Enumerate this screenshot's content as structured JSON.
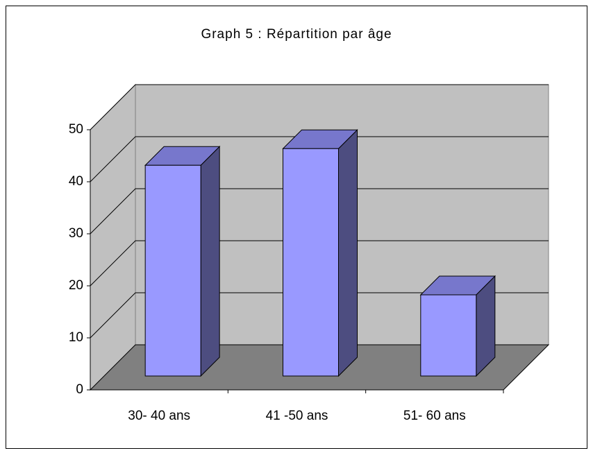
{
  "chart_data": {
    "type": "bar3d",
    "title": "Graph 5 : Répartition par âge",
    "categories": [
      "30- 40 ans",
      "41 -50 ans",
      "51- 60 ans"
    ],
    "values": [
      40.5,
      43.7,
      15.6
    ],
    "color": "#9999ff",
    "ylim": [
      0,
      50
    ],
    "yticks": [
      0,
      10,
      20,
      30,
      40,
      50
    ],
    "grid": true
  }
}
